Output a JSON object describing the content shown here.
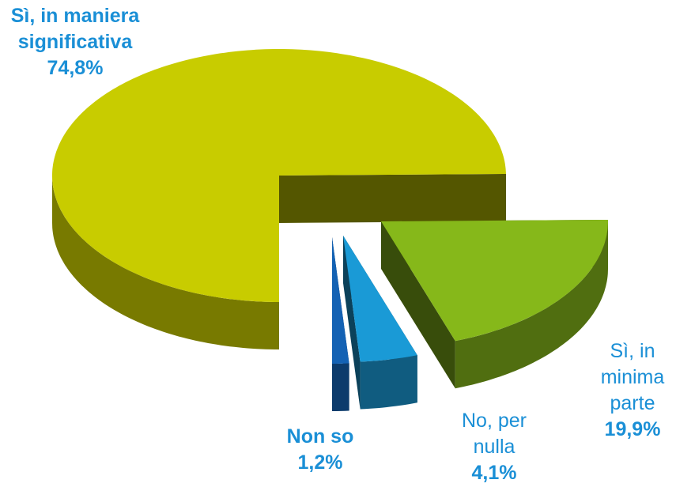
{
  "chart_data": {
    "type": "pie3d",
    "categories": [
      "Sì, in maniera significativa",
      "Sì, in minima parte",
      "No, per nulla",
      "Non so"
    ],
    "values": [
      74.8,
      19.9,
      4.1,
      1.2
    ],
    "value_labels": [
      "74,8%",
      "19,9%",
      "4,1%",
      "1,2%"
    ],
    "colors": [
      "#c8cc00",
      "#86b81a",
      "#1a9ad6",
      "#1462b4"
    ]
  }
}
